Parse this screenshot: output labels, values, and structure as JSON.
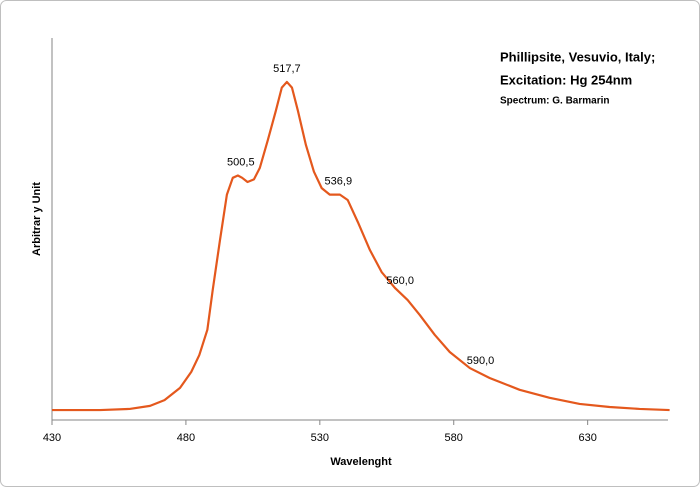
{
  "chart_data": {
    "type": "line",
    "title": [
      "Phillipsite, Vesuvio, Italy;",
      "Excitation:  Hg 254nm"
    ],
    "subtitle": "Spectrum: G. Barmarin",
    "xlabel": "Wavelenght",
    "ylabel": "Arbitrar y Unit",
    "color": "#e4581d",
    "x": [
      430,
      448,
      459,
      466.6,
      472,
      477.8,
      482,
      485,
      488,
      490,
      492.7,
      495.3,
      497.5,
      499.4,
      501,
      503,
      505.4,
      507.6,
      510.6,
      513.6,
      515.8,
      517.7,
      519.6,
      521.8,
      524.8,
      527.8,
      530.7,
      533.7,
      537.5,
      540.4,
      544.2,
      548.7,
      553.1,
      558,
      562.8,
      567.3,
      572.9,
      578.5,
      586,
      593.4,
      604.6,
      615.8,
      627,
      638.2,
      649.4,
      660.6
    ],
    "values": [
      2.6,
      2.6,
      2.9,
      3.7,
      5.2,
      8.4,
      12.6,
      17,
      23.6,
      34,
      47,
      59,
      63.4,
      64,
      63.4,
      62.3,
      63,
      66,
      73.3,
      81,
      87,
      88.5,
      87,
      81,
      72,
      65,
      60.7,
      59,
      59,
      57.6,
      51.8,
      44.5,
      38.7,
      34.6,
      31.4,
      27.5,
      22.3,
      17.8,
      13.6,
      11,
      7.9,
      5.8,
      4.2,
      3.4,
      2.9,
      2.6
    ],
    "annotations": [
      {
        "x": 500.5,
        "y": 64,
        "label": "500,5"
      },
      {
        "x": 517.7,
        "y": 88.5,
        "label": "517,7"
      },
      {
        "x": 536.9,
        "y": 59,
        "label": "536,9"
      },
      {
        "x": 560.0,
        "y": 33,
        "label": "560,0"
      },
      {
        "x": 590.0,
        "y": 12,
        "label": "590,0"
      }
    ],
    "xlim": [
      430,
      660
    ],
    "xticks": [
      430,
      480,
      530,
      580,
      630
    ],
    "ylim": [
      0,
      100
    ]
  }
}
